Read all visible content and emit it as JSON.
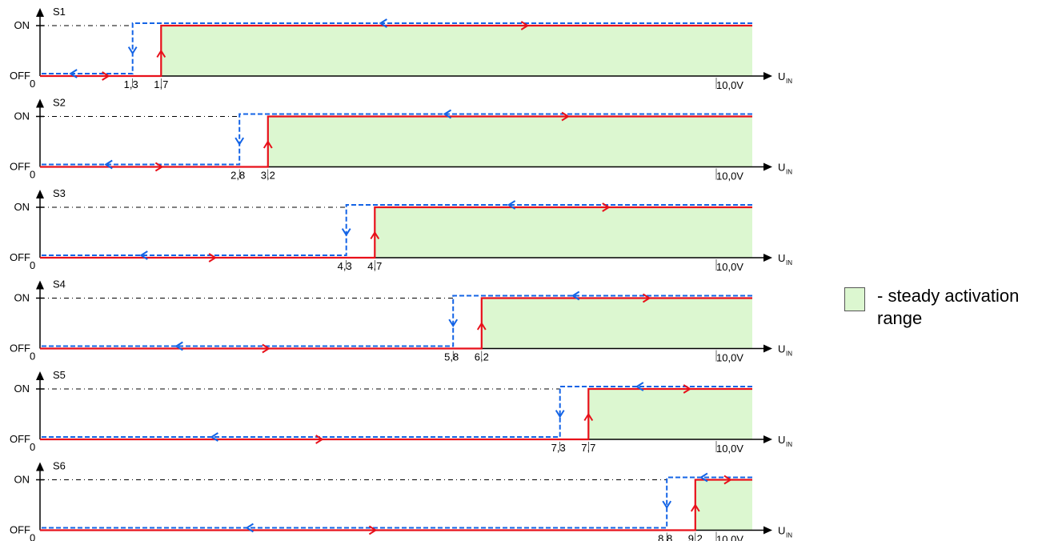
{
  "y_labels": {
    "on": "ON",
    "off": "OFF"
  },
  "x_axis": {
    "origin": "0",
    "end_label": "10,0V",
    "unit_main": "U",
    "unit_sub": "IN"
  },
  "legend": {
    "text": "- steady activation\nrange",
    "fill_color": "#dcf7d0"
  },
  "colors": {
    "rising": "#e8101a",
    "falling": "#1464e6",
    "range_fill": "#dcf7d0"
  },
  "chart_data": {
    "type": "step",
    "x_range": [
      0,
      10.0
    ],
    "states": [
      "OFF",
      "ON"
    ],
    "switches": [
      {
        "name": "S1",
        "off_threshold": 1.3,
        "on_threshold": 1.7,
        "off_label": "1,3",
        "on_label": "1,7"
      },
      {
        "name": "S2",
        "off_threshold": 2.8,
        "on_threshold": 3.2,
        "off_label": "2,8",
        "on_label": "3,2"
      },
      {
        "name": "S3",
        "off_threshold": 4.3,
        "on_threshold": 4.7,
        "off_label": "4,3",
        "on_label": "4,7"
      },
      {
        "name": "S4",
        "off_threshold": 5.8,
        "on_threshold": 6.2,
        "off_label": "5,8",
        "on_label": "6,2"
      },
      {
        "name": "S5",
        "off_threshold": 7.3,
        "on_threshold": 7.7,
        "off_label": "7,3",
        "on_label": "7,7"
      },
      {
        "name": "S6",
        "off_threshold": 8.8,
        "on_threshold": 9.2,
        "off_label": "8,8",
        "on_label": "9,2"
      }
    ]
  }
}
